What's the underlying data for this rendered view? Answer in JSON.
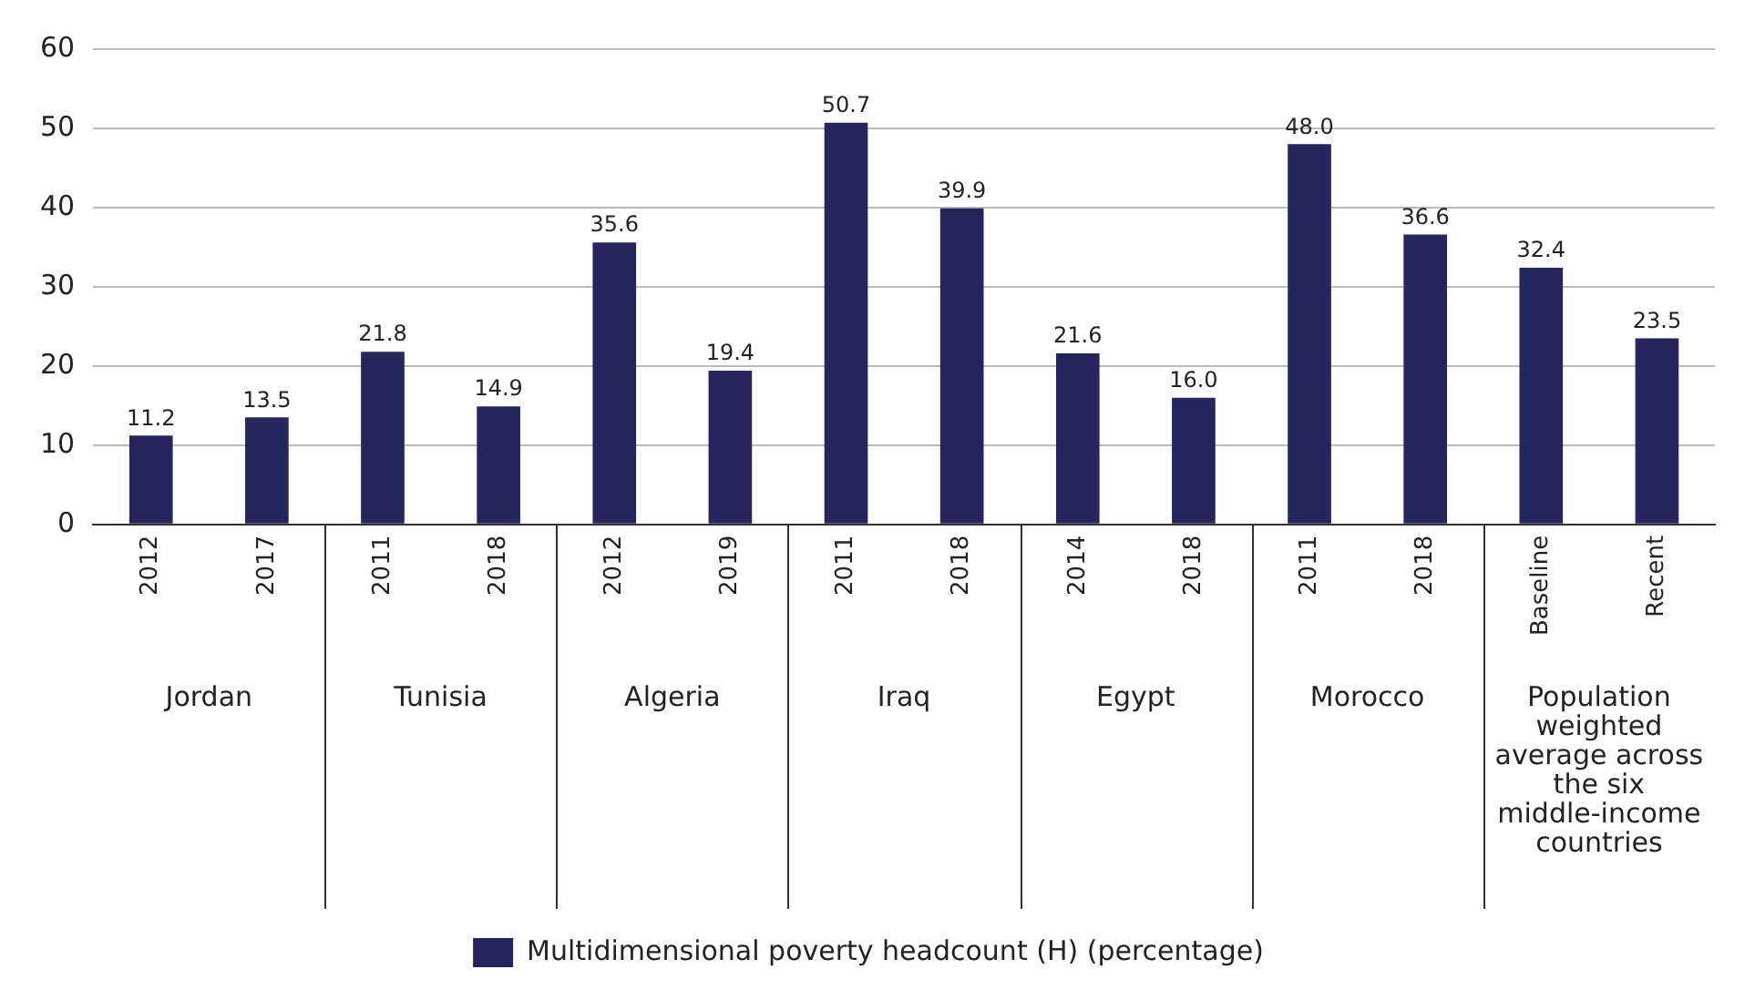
{
  "chart_data": {
    "type": "bar",
    "categories": [
      "2012",
      "2017",
      "2011",
      "2018",
      "2012",
      "2019",
      "2011",
      "2018",
      "2014",
      "2018",
      "2011",
      "2018",
      "Baseline",
      "Recent"
    ],
    "series": [
      {
        "name": "Multidimensional poverty headcount (H) (percentage)",
        "color": "#25265e",
        "values": [
          11.2,
          13.5,
          21.8,
          14.9,
          35.6,
          19.4,
          50.7,
          39.9,
          21.6,
          16.0,
          48.0,
          36.6,
          32.4,
          23.5
        ],
        "value_labels": [
          "11.2",
          "13.5",
          "21.8",
          "14.9",
          "35.6",
          "19.4",
          "50.7",
          "39.9",
          "21.6",
          "16.0",
          "48.0",
          "36.6",
          "32.4",
          "23.5"
        ]
      }
    ],
    "ylim": [
      0,
      60
    ],
    "yticks": [
      0,
      10,
      20,
      30,
      40,
      50,
      60
    ],
    "grid": "y",
    "legend": "bottom",
    "annotations": [
      "Jordan",
      "Tunisia",
      "Algeria",
      "Iraq",
      "Egypt",
      "Morocco",
      "Population weighted average across the six middle-income countries"
    ]
  }
}
